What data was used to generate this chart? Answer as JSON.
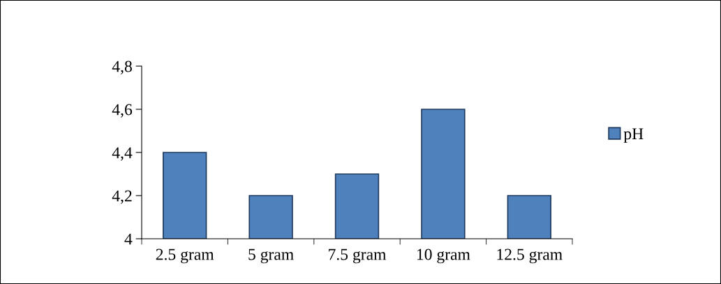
{
  "chart_data": {
    "type": "bar",
    "categories": [
      "2.5 gram",
      "5 gram",
      "7.5 gram",
      "10 gram",
      "12.5 gram"
    ],
    "series": [
      {
        "name": "pH",
        "color": "#4f81bd",
        "values": [
          4.4,
          4.2,
          4.3,
          4.6,
          4.2
        ]
      }
    ],
    "ylim": [
      4,
      4.8
    ],
    "yticks": [
      4,
      {
        "value": 4.2,
        "label": "4,2"
      },
      {
        "value": 4.4,
        "label": "4,4"
      },
      {
        "value": 4.6,
        "label": "4,6"
      },
      {
        "value": 4.8,
        "label": "4,8"
      }
    ],
    "grid": false,
    "legend": "right"
  }
}
